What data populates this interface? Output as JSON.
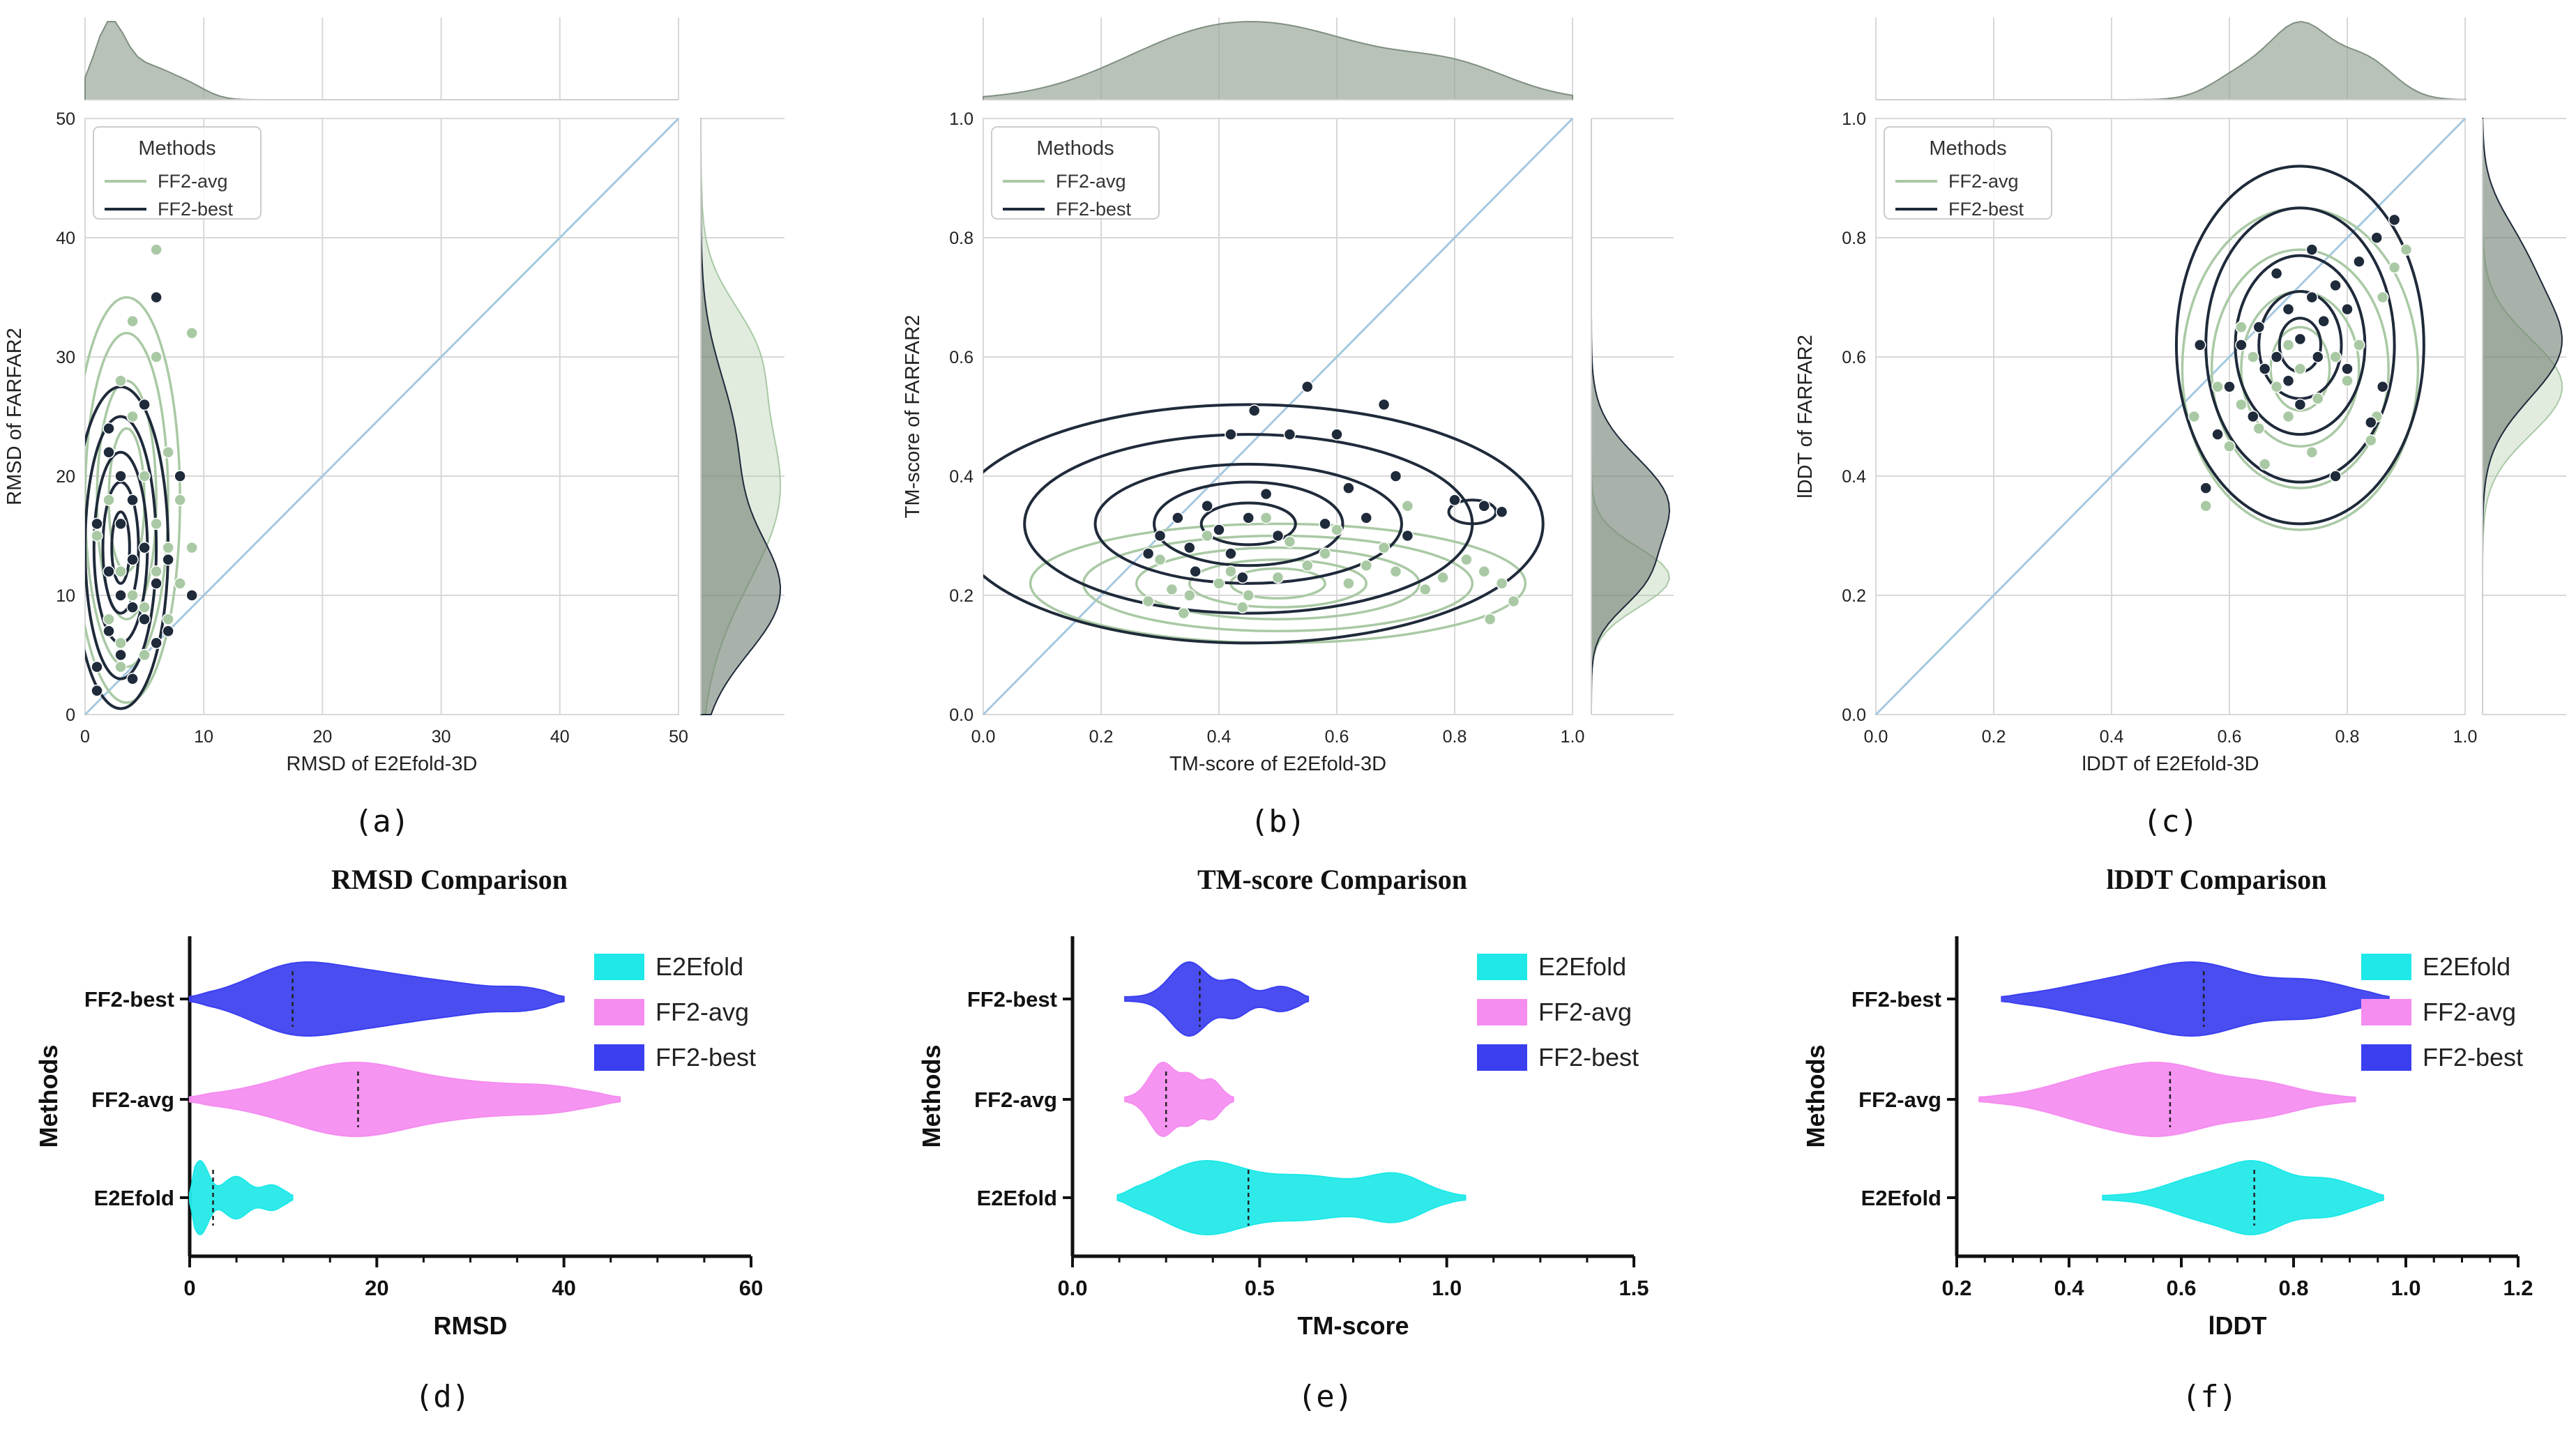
{
  "colors": {
    "ff2_avg": "#a9c9a4",
    "ff2_best": "#1f2a3a",
    "diag": "#a6c8e0",
    "grid": "#d8d8d8",
    "marginal": "#9aa89a",
    "e2efold": "#1ee8e8",
    "v_avg": "#f58cf0",
    "v_best": "#3b3ff0"
  },
  "chart_data": [
    {
      "id": "a",
      "type": "scatter",
      "caption": "(a)",
      "xlabel": "RMSD of E2Efold-3D",
      "ylabel": "RMSD of FARFAR2",
      "xlim": [
        0,
        50
      ],
      "ylim": [
        0,
        50
      ],
      "xticks": [
        "0",
        "10",
        "20",
        "30",
        "40",
        "50"
      ],
      "yticks": [
        "0",
        "10",
        "20",
        "30",
        "40",
        "50"
      ],
      "grid": true,
      "legend_position": "top-left",
      "legend_title": "Methods",
      "legend": [
        "FF2-avg",
        "FF2-best"
      ],
      "diagonal": true,
      "series": [
        {
          "name": "FF2-avg",
          "points": [
            [
              3,
              28
            ],
            [
              4,
              25
            ],
            [
              5,
              20
            ],
            [
              2,
              18
            ],
            [
              6,
              16
            ],
            [
              7,
              14
            ],
            [
              3,
              12
            ],
            [
              8,
              11
            ],
            [
              5,
              9
            ],
            [
              9,
              32
            ],
            [
              4,
              33
            ],
            [
              6,
              39
            ],
            [
              2,
              22
            ],
            [
              7,
              22
            ],
            [
              3,
              6
            ],
            [
              5,
              5
            ],
            [
              8,
              18
            ],
            [
              1,
              15
            ],
            [
              6,
              12
            ],
            [
              4,
              10
            ],
            [
              9,
              14
            ],
            [
              2,
              8
            ],
            [
              7,
              8
            ],
            [
              3,
              4
            ],
            [
              6,
              30
            ]
          ]
        },
        {
          "name": "FF2-best",
          "points": [
            [
              2,
              24
            ],
            [
              3,
              20
            ],
            [
              4,
              18
            ],
            [
              1,
              16
            ],
            [
              5,
              14
            ],
            [
              2,
              12
            ],
            [
              6,
              11
            ],
            [
              3,
              10
            ],
            [
              4,
              9
            ],
            [
              5,
              8
            ],
            [
              2,
              7
            ],
            [
              7,
              7
            ],
            [
              3,
              5
            ],
            [
              1,
              4
            ],
            [
              4,
              3
            ],
            [
              6,
              35
            ],
            [
              5,
              26
            ],
            [
              8,
              20
            ],
            [
              3,
              16
            ],
            [
              7,
              13
            ],
            [
              2,
              22
            ],
            [
              9,
              10
            ],
            [
              6,
              6
            ],
            [
              1,
              2
            ],
            [
              4,
              13
            ]
          ]
        }
      ]
    },
    {
      "id": "b",
      "type": "scatter",
      "caption": "(b)",
      "xlabel": "TM-score of E2Efold-3D",
      "ylabel": "TM-score of FARFAR2",
      "xlim": [
        0,
        1
      ],
      "ylim": [
        0,
        1
      ],
      "xticks": [
        "0.0",
        "0.2",
        "0.4",
        "0.6",
        "0.8",
        "1.0"
      ],
      "yticks": [
        "0.0",
        "0.2",
        "0.4",
        "0.6",
        "0.8",
        "1.0"
      ],
      "grid": true,
      "legend_position": "top-left",
      "legend_title": "Methods",
      "legend": [
        "FF2-avg",
        "FF2-best"
      ],
      "diagonal": true,
      "series": [
        {
          "name": "FF2-avg",
          "points": [
            [
              0.28,
              0.19
            ],
            [
              0.32,
              0.21
            ],
            [
              0.35,
              0.2
            ],
            [
              0.4,
              0.22
            ],
            [
              0.42,
              0.24
            ],
            [
              0.45,
              0.2
            ],
            [
              0.5,
              0.23
            ],
            [
              0.55,
              0.25
            ],
            [
              0.58,
              0.27
            ],
            [
              0.62,
              0.22
            ],
            [
              0.65,
              0.25
            ],
            [
              0.7,
              0.24
            ],
            [
              0.75,
              0.21
            ],
            [
              0.78,
              0.23
            ],
            [
              0.82,
              0.26
            ],
            [
              0.85,
              0.24
            ],
            [
              0.88,
              0.22
            ],
            [
              0.9,
              0.19
            ],
            [
              0.3,
              0.26
            ],
            [
              0.38,
              0.3
            ],
            [
              0.48,
              0.33
            ],
            [
              0.52,
              0.29
            ],
            [
              0.6,
              0.31
            ],
            [
              0.68,
              0.28
            ],
            [
              0.72,
              0.35
            ],
            [
              0.34,
              0.17
            ],
            [
              0.44,
              0.18
            ],
            [
              0.86,
              0.16
            ]
          ]
        },
        {
          "name": "FF2-best",
          "points": [
            [
              0.3,
              0.3
            ],
            [
              0.33,
              0.33
            ],
            [
              0.35,
              0.28
            ],
            [
              0.38,
              0.35
            ],
            [
              0.4,
              0.31
            ],
            [
              0.42,
              0.27
            ],
            [
              0.45,
              0.33
            ],
            [
              0.48,
              0.37
            ],
            [
              0.5,
              0.3
            ],
            [
              0.52,
              0.47
            ],
            [
              0.55,
              0.55
            ],
            [
              0.46,
              0.51
            ],
            [
              0.42,
              0.47
            ],
            [
              0.6,
              0.47
            ],
            [
              0.62,
              0.38
            ],
            [
              0.65,
              0.33
            ],
            [
              0.7,
              0.4
            ],
            [
              0.72,
              0.3
            ],
            [
              0.8,
              0.36
            ],
            [
              0.85,
              0.35
            ],
            [
              0.88,
              0.34
            ],
            [
              0.36,
              0.24
            ],
            [
              0.44,
              0.23
            ],
            [
              0.58,
              0.32
            ],
            [
              0.68,
              0.52
            ],
            [
              0.28,
              0.27
            ]
          ]
        }
      ]
    },
    {
      "id": "c",
      "type": "scatter",
      "caption": "(c)",
      "xlabel": "lDDT of E2Efold-3D",
      "ylabel": "lDDT of FARFAR2",
      "xlim": [
        0,
        1
      ],
      "ylim": [
        0,
        1
      ],
      "xticks": [
        "0.0",
        "0.2",
        "0.4",
        "0.6",
        "0.8",
        "1.0"
      ],
      "yticks": [
        "0.0",
        "0.2",
        "0.4",
        "0.6",
        "0.8",
        "1.0"
      ],
      "grid": true,
      "legend_position": "top-left",
      "legend_title": "Methods",
      "legend": [
        "FF2-avg",
        "FF2-best"
      ],
      "diagonal": true,
      "series": [
        {
          "name": "FF2-avg",
          "points": [
            [
              0.58,
              0.55
            ],
            [
              0.62,
              0.52
            ],
            [
              0.65,
              0.48
            ],
            [
              0.68,
              0.55
            ],
            [
              0.7,
              0.5
            ],
            [
              0.72,
              0.58
            ],
            [
              0.75,
              0.53
            ],
            [
              0.78,
              0.6
            ],
            [
              0.8,
              0.56
            ],
            [
              0.82,
              0.62
            ],
            [
              0.85,
              0.5
            ],
            [
              0.6,
              0.45
            ],
            [
              0.66,
              0.42
            ],
            [
              0.74,
              0.44
            ],
            [
              0.86,
              0.7
            ],
            [
              0.88,
              0.75
            ],
            [
              0.56,
              0.35
            ],
            [
              0.64,
              0.6
            ],
            [
              0.76,
              0.66
            ],
            [
              0.84,
              0.46
            ],
            [
              0.7,
              0.62
            ],
            [
              0.62,
              0.65
            ],
            [
              0.9,
              0.78
            ],
            [
              0.54,
              0.5
            ]
          ]
        },
        {
          "name": "FF2-best",
          "points": [
            [
              0.62,
              0.62
            ],
            [
              0.65,
              0.65
            ],
            [
              0.68,
              0.6
            ],
            [
              0.7,
              0.68
            ],
            [
              0.72,
              0.63
            ],
            [
              0.74,
              0.7
            ],
            [
              0.76,
              0.66
            ],
            [
              0.78,
              0.72
            ],
            [
              0.8,
              0.68
            ],
            [
              0.66,
              0.58
            ],
            [
              0.7,
              0.56
            ],
            [
              0.75,
              0.6
            ],
            [
              0.82,
              0.76
            ],
            [
              0.85,
              0.8
            ],
            [
              0.88,
              0.83
            ],
            [
              0.6,
              0.55
            ],
            [
              0.64,
              0.5
            ],
            [
              0.72,
              0.52
            ],
            [
              0.8,
              0.58
            ],
            [
              0.86,
              0.55
            ],
            [
              0.55,
              0.62
            ],
            [
              0.58,
              0.47
            ],
            [
              0.78,
              0.4
            ],
            [
              0.68,
              0.74
            ],
            [
              0.74,
              0.78
            ],
            [
              0.56,
              0.38
            ],
            [
              0.84,
              0.49
            ]
          ]
        }
      ]
    },
    {
      "id": "d",
      "type": "violin",
      "caption": "(d)",
      "title": "RMSD Comparison",
      "xlabel": "RMSD",
      "ylabel": "Methods",
      "xlim": [
        0,
        60
      ],
      "xticks": [
        "0",
        "20",
        "40",
        "60"
      ],
      "categories": [
        "FF2-best",
        "FF2-avg",
        "E2Efold"
      ],
      "legend": [
        "E2Efold",
        "FF2-avg",
        "FF2-best"
      ],
      "legend_position": "top-right",
      "medians": {
        "FF2-best": 11,
        "FF2-avg": 18,
        "E2Efold": 2.5
      },
      "ranges": {
        "FF2-best": [
          0,
          40
        ],
        "FF2-avg": [
          0,
          46
        ],
        "E2Efold": [
          0,
          11
        ]
      }
    },
    {
      "id": "e",
      "type": "violin",
      "caption": "(e)",
      "title": "TM-score Comparison",
      "xlabel": "TM-score",
      "ylabel": "Methods",
      "xlim": [
        0,
        1.5
      ],
      "xticks": [
        "0.0",
        "0.5",
        "1.0",
        "1.5"
      ],
      "categories": [
        "FF2-best",
        "FF2-avg",
        "E2Efold"
      ],
      "legend": [
        "E2Efold",
        "FF2-avg",
        "FF2-best"
      ],
      "legend_position": "top-right",
      "medians": {
        "FF2-best": 0.34,
        "FF2-avg": 0.25,
        "E2Efold": 0.47
      },
      "ranges": {
        "FF2-best": [
          0.14,
          0.63
        ],
        "FF2-avg": [
          0.14,
          0.43
        ],
        "E2Efold": [
          0.12,
          1.05
        ]
      }
    },
    {
      "id": "f",
      "type": "violin",
      "caption": "(f)",
      "title": "lDDT Comparison",
      "xlabel": "lDDT",
      "ylabel": "Methods",
      "xlim": [
        0.2,
        1.2
      ],
      "xticks": [
        "0.2",
        "0.4",
        "0.6",
        "0.8",
        "1.0",
        "1.2"
      ],
      "categories": [
        "FF2-best",
        "FF2-avg",
        "E2Efold"
      ],
      "legend": [
        "E2Efold",
        "FF2-avg",
        "FF2-best"
      ],
      "legend_position": "top-right",
      "medians": {
        "FF2-best": 0.64,
        "FF2-avg": 0.58,
        "E2Efold": 0.73
      },
      "ranges": {
        "FF2-best": [
          0.28,
          0.97
        ],
        "FF2-avg": [
          0.24,
          0.91
        ],
        "E2Efold": [
          0.46,
          0.96
        ]
      }
    }
  ]
}
